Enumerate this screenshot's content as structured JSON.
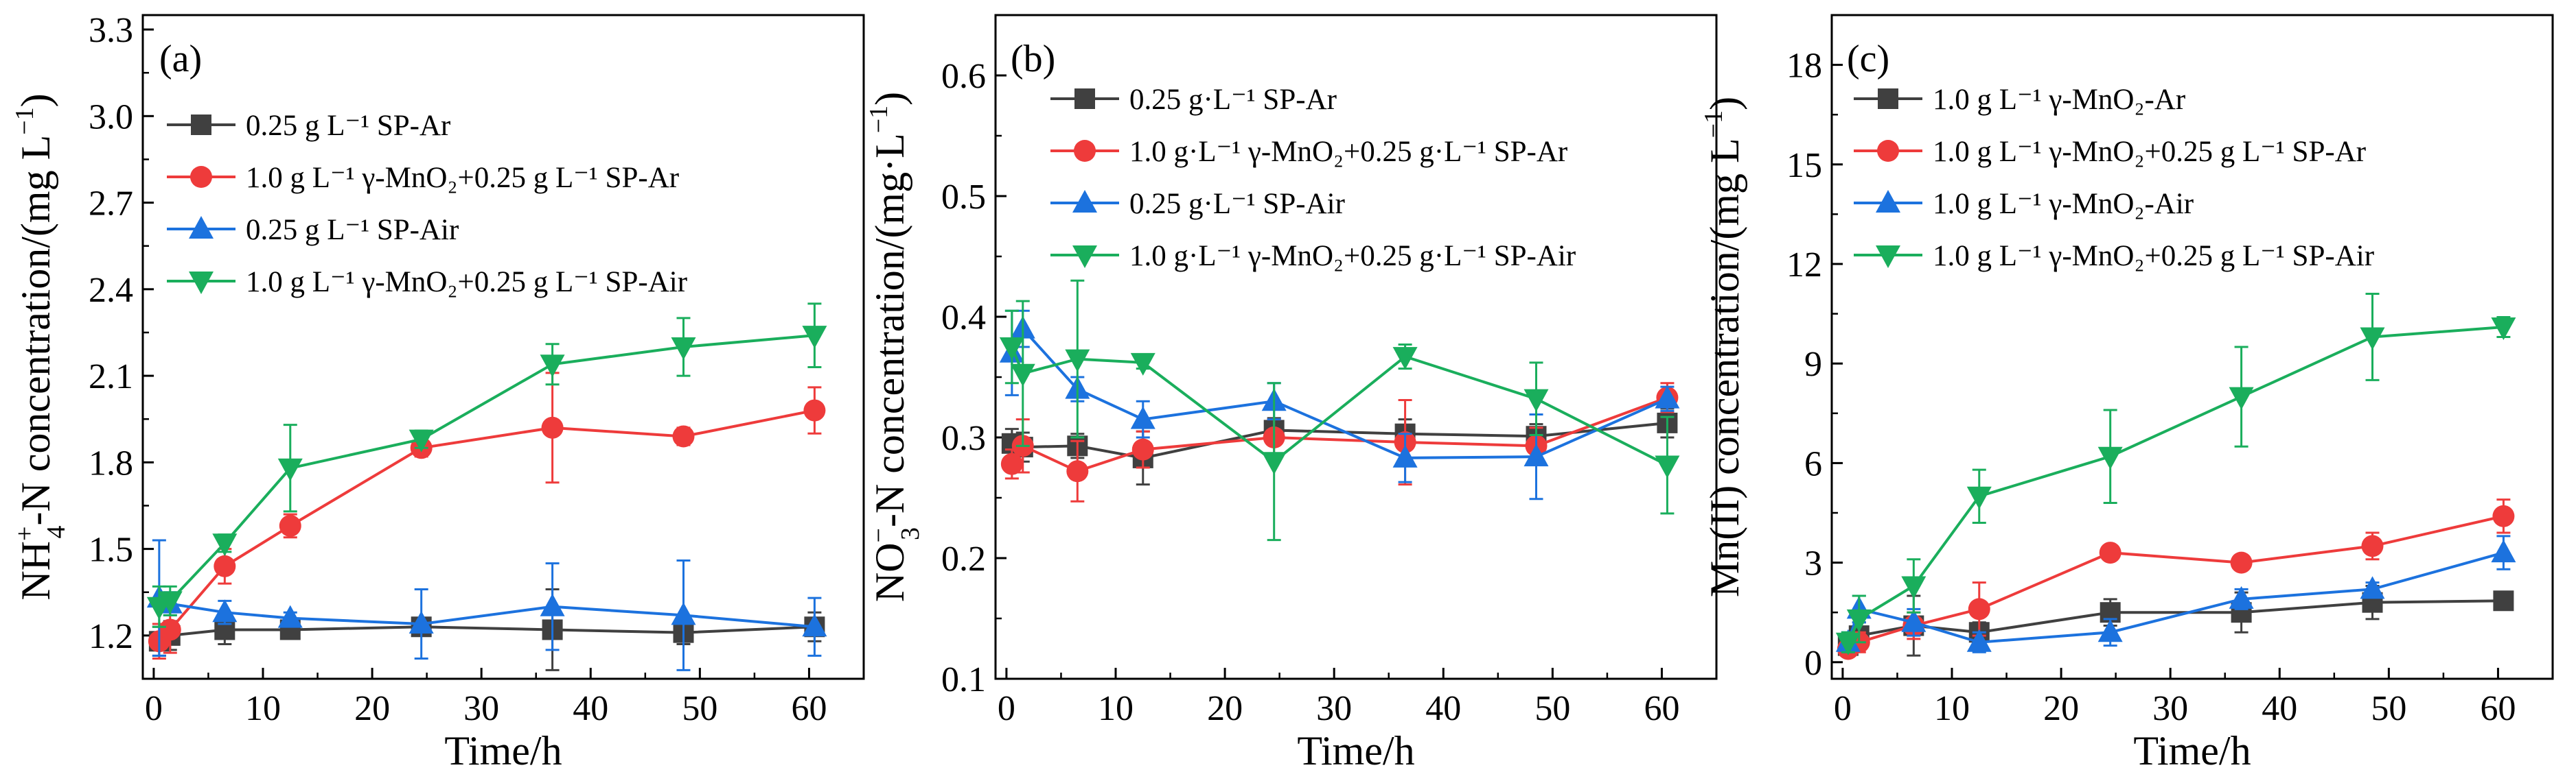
{
  "figure": {
    "colors": {
      "black": "#404040",
      "red": "#ee3b3b",
      "blue": "#1c72de",
      "green": "#1aae5c"
    },
    "markers": {
      "black": "square",
      "red": "circle",
      "blue": "triangle-up",
      "green": "triangle-down"
    }
  },
  "chart_data": [
    {
      "type": "line",
      "panel": "(a)",
      "xlabel": "Time/h",
      "ylabel": "NH4+-N concentration/(mg L−1)",
      "ylabel_parts": {
        "pre": "NH",
        "sup": "+",
        "sub": "4",
        "mid": "-N concentration/(mg L",
        "sup2": "−1",
        "post": ")"
      },
      "xlim": [
        -1,
        65
      ],
      "ylim": [
        1.05,
        3.35
      ],
      "xticks": [
        0,
        10,
        20,
        30,
        40,
        50,
        60
      ],
      "yticks": [
        1.2,
        1.5,
        1.8,
        2.1,
        2.4,
        2.7,
        3.0,
        3.3
      ],
      "ytick_labels": [
        "1.2",
        "1.5",
        "1.8",
        "2.1",
        "2.4",
        "2.7",
        "3.0",
        "3.3"
      ],
      "legend_placement": "upper-left",
      "series": [
        {
          "name": "0.25 g L⁻¹ SP-Ar",
          "color": "black",
          "marker": "square",
          "x": [
            0.5,
            1.5,
            6.5,
            12.5,
            24.5,
            36.5,
            48.5,
            60.5
          ],
          "y": [
            1.18,
            1.2,
            1.22,
            1.22,
            1.23,
            1.22,
            1.21,
            1.23
          ],
          "err": [
            0.05,
            0.05,
            0.05,
            0.02,
            0.02,
            0.14,
            0.04,
            0.05
          ]
        },
        {
          "name": "1.0 g L⁻¹ γ-MnO₂+0.25 g L⁻¹ SP-Ar",
          "color": "red",
          "marker": "circle",
          "x": [
            0.5,
            1.5,
            6.5,
            12.5,
            24.5,
            36.5,
            48.5,
            60.5
          ],
          "y": [
            1.18,
            1.22,
            1.44,
            1.58,
            1.85,
            1.92,
            1.89,
            1.98
          ],
          "err": [
            0.06,
            0.08,
            0.06,
            0.04,
            0.03,
            0.19,
            0.03,
            0.08
          ]
        },
        {
          "name": "0.25 g L⁻¹ SP-Air",
          "color": "blue",
          "marker": "triangle-up",
          "x": [
            0.5,
            1.5,
            6.5,
            12.5,
            24.5,
            36.5,
            48.5,
            60.5
          ],
          "y": [
            1.33,
            1.31,
            1.28,
            1.26,
            1.24,
            1.3,
            1.27,
            1.23
          ],
          "err": [
            0.2,
            0.04,
            0.04,
            0.02,
            0.12,
            0.15,
            0.19,
            0.1
          ]
        },
        {
          "name": "1.0 g L⁻¹ γ-MnO₂+0.25 g L⁻¹ SP-Air",
          "color": "green",
          "marker": "triangle-down",
          "x": [
            0.5,
            1.5,
            6.5,
            12.5,
            24.5,
            36.5,
            48.5,
            60.5
          ],
          "y": [
            1.3,
            1.32,
            1.52,
            1.78,
            1.88,
            2.14,
            2.2,
            2.24
          ],
          "err": [
            0.07,
            0.05,
            0.03,
            0.15,
            0.03,
            0.07,
            0.1,
            0.11
          ]
        }
      ]
    },
    {
      "type": "line",
      "panel": "(b)",
      "xlabel": "Time/h",
      "ylabel": "NO3−-N concentration/(mg·L−1)",
      "ylabel_parts": {
        "pre": "NO",
        "sup": "−",
        "sub": "3",
        "mid": "-N concentration/(mg·L",
        "sup2": "−1",
        "post": ")"
      },
      "xlim": [
        -1,
        65
      ],
      "ylim": [
        0.1,
        0.65
      ],
      "xticks": [
        0,
        10,
        20,
        30,
        40,
        50,
        60
      ],
      "yticks": [
        0.1,
        0.2,
        0.3,
        0.4,
        0.5,
        0.6
      ],
      "ytick_labels": [
        "0.1",
        "0.2",
        "0.3",
        "0.4",
        "0.5",
        "0.6"
      ],
      "legend_placement": "upper-left",
      "series": [
        {
          "name": "0.25 g·L⁻¹ SP-Ar",
          "color": "black",
          "marker": "square",
          "x": [
            0.5,
            1.5,
            6.5,
            12.5,
            24.5,
            36.5,
            48.5,
            60.5
          ],
          "y": [
            0.295,
            0.292,
            0.293,
            0.283,
            0.306,
            0.303,
            0.301,
            0.312
          ],
          "err": [
            0.012,
            0.012,
            0.01,
            0.022,
            0.01,
            0.012,
            0.01,
            0.012
          ]
        },
        {
          "name": "1.0 g·L⁻¹ γ-MnO₂+0.25 g·L⁻¹ SP-Ar",
          "color": "red",
          "marker": "circle",
          "x": [
            0.5,
            1.5,
            6.5,
            12.5,
            24.5,
            36.5,
            48.5,
            60.5
          ],
          "y": [
            0.278,
            0.293,
            0.272,
            0.29,
            0.3,
            0.296,
            0.293,
            0.333
          ],
          "err": [
            0.012,
            0.022,
            0.025,
            0.015,
            0.015,
            0.035,
            0.015,
            0.012
          ]
        },
        {
          "name": "0.25 g·L⁻¹ SP-Air",
          "color": "blue",
          "marker": "triangle-up",
          "x": [
            0.5,
            1.5,
            6.5,
            12.5,
            24.5,
            36.5,
            48.5,
            60.5
          ],
          "y": [
            0.37,
            0.39,
            0.34,
            0.315,
            0.33,
            0.283,
            0.284,
            0.332
          ],
          "err": [
            0.035,
            0.015,
            0.01,
            0.015,
            0.015,
            0.02,
            0.035,
            0.01
          ]
        },
        {
          "name": "1.0 g·L⁻¹ γ-MnO₂+0.25 g·L⁻¹ SP-Air",
          "color": "green",
          "marker": "triangle-down",
          "x": [
            0.5,
            1.5,
            6.5,
            12.5,
            24.5,
            36.5,
            48.5,
            60.5
          ],
          "y": [
            0.375,
            0.353,
            0.365,
            0.362,
            0.28,
            0.367,
            0.332,
            0.277
          ],
          "err": [
            0.03,
            0.06,
            0.065,
            0.005,
            0.065,
            0.01,
            0.03,
            0.04
          ]
        }
      ]
    },
    {
      "type": "line",
      "panel": "(c)",
      "xlabel": "Time/h",
      "ylabel": "Mn(II) concentration/(mg L−1)",
      "ylabel_parts": {
        "pre": "Mn(II) concentration/(mg L",
        "sup": "",
        "sub": "",
        "mid": "",
        "sup2": "−1",
        "post": ")"
      },
      "xlim": [
        -1,
        65
      ],
      "ylim": [
        -0.5,
        19.5
      ],
      "xticks": [
        0,
        10,
        20,
        30,
        40,
        50,
        60
      ],
      "yticks": [
        0,
        3,
        6,
        9,
        12,
        15,
        18
      ],
      "ytick_labels": [
        "0",
        "3",
        "6",
        "9",
        "12",
        "15",
        "18"
      ],
      "legend_placement": "upper-left",
      "series": [
        {
          "name": "1.0 g L⁻¹ γ-MnO₂-Ar",
          "color": "black",
          "marker": "square",
          "x": [
            0.5,
            1.5,
            6.5,
            12.5,
            24.5,
            36.5,
            48.5,
            60.5
          ],
          "y": [
            0.5,
            0.8,
            1.1,
            0.9,
            1.5,
            1.5,
            1.8,
            1.85
          ],
          "err": [
            0.3,
            0.4,
            0.9,
            0.3,
            0.4,
            0.6,
            0.5,
            0.2
          ]
        },
        {
          "name": "1.0 g L⁻¹ γ-MnO₂+0.25 g L⁻¹ SP-Ar",
          "color": "red",
          "marker": "circle",
          "x": [
            0.5,
            1.5,
            6.5,
            12.5,
            24.5,
            36.5,
            48.5,
            60.5
          ],
          "y": [
            0.4,
            0.6,
            1.1,
            1.6,
            3.3,
            3.0,
            3.5,
            4.4
          ],
          "err": [
            0.2,
            0.3,
            0.4,
            0.8,
            0.2,
            0.2,
            0.4,
            0.5
          ]
        },
        {
          "name": "1.0 g L⁻¹ γ-MnO₂-Air",
          "color": "blue",
          "marker": "triangle-up",
          "x": [
            0.5,
            1.5,
            6.5,
            12.5,
            24.5,
            36.5,
            48.5,
            60.5
          ],
          "y": [
            0.6,
            1.6,
            1.2,
            0.6,
            0.9,
            1.9,
            2.2,
            3.3
          ],
          "err": [
            0.3,
            0.4,
            0.4,
            0.3,
            0.4,
            0.3,
            0.2,
            0.5
          ]
        },
        {
          "name": "1.0 g L⁻¹ γ-MnO₂+0.25 g L⁻¹ SP-Air",
          "color": "green",
          "marker": "triangle-down",
          "x": [
            0.5,
            1.5,
            6.5,
            12.5,
            24.5,
            36.5,
            48.5,
            60.5
          ],
          "y": [
            0.6,
            1.3,
            2.3,
            5.0,
            6.2,
            8.0,
            9.8,
            10.1
          ],
          "err": [
            0.3,
            0.7,
            0.8,
            0.8,
            1.4,
            1.5,
            1.3,
            0.3
          ]
        }
      ]
    }
  ]
}
